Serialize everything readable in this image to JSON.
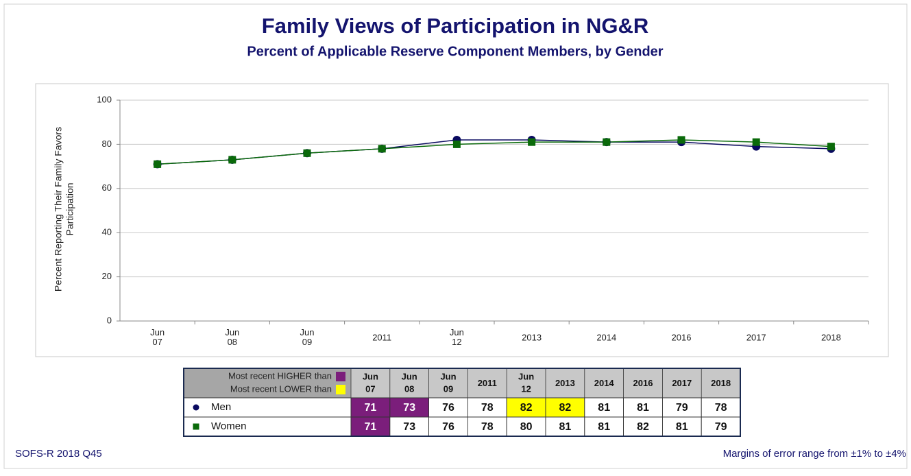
{
  "chart_data": {
    "type": "line",
    "title": "Family Views of Participation in NG&R",
    "subtitle": "Percent of Applicable Reserve Component Members, by Gender",
    "ylabel": [
      "Percent Reporting Their Family Favors",
      "Participation"
    ],
    "categories": [
      "Jun 07",
      "Jun 08",
      "Jun 09",
      "2011",
      "Jun 12",
      "2013",
      "2014",
      "2016",
      "2017",
      "2018"
    ],
    "series": [
      {
        "name": "Men",
        "color": "#0a0a60",
        "marker": "circle",
        "values": [
          71,
          73,
          76,
          78,
          82,
          82,
          81,
          81,
          79,
          78
        ],
        "highlights": [
          0,
          0,
          null,
          null,
          1,
          1,
          null,
          null,
          null,
          null
        ]
      },
      {
        "name": "Women",
        "color": "#0a6a0a",
        "marker": "square",
        "values": [
          71,
          73,
          76,
          78,
          80,
          81,
          81,
          82,
          81,
          79
        ],
        "highlights": [
          0,
          null,
          null,
          null,
          null,
          null,
          null,
          null,
          null,
          null
        ]
      }
    ],
    "table_legend": [
      {
        "label": "Most recent HIGHER than",
        "color": "#7b1e7b"
      },
      {
        "label": "Most recent LOWER than",
        "color": "#ffff00"
      }
    ],
    "ylim": [
      0,
      100
    ],
    "yticks": [
      0,
      20,
      40,
      60,
      80,
      100
    ],
    "grid": true,
    "source": "SOFS-R 2018 Q45",
    "note": "Margins of error range from ±1% to ±4%"
  }
}
